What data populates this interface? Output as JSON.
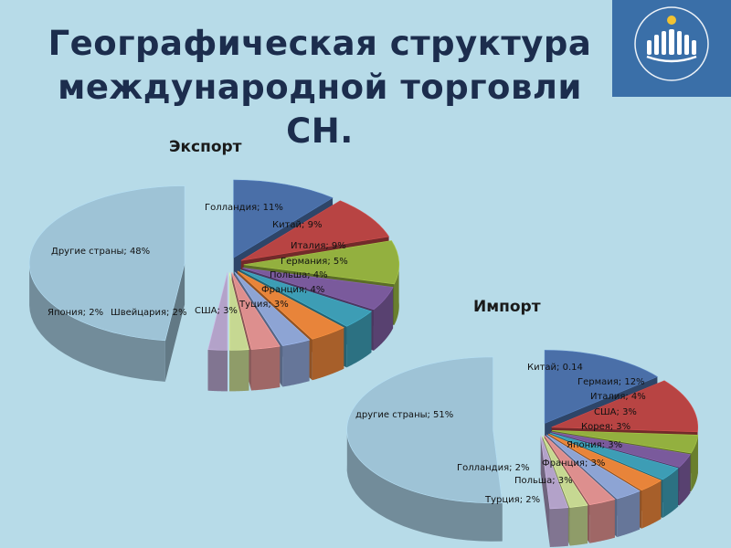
{
  "slide": {
    "title_line1": "Географическая структура",
    "title_line2": "международной торговли СН."
  },
  "logo": {
    "icon": "cis-emblem-icon",
    "background": "#3a6fa8"
  },
  "chart_data": [
    {
      "type": "pie",
      "title": "Экспорт",
      "slices": [
        {
          "label": "Голландия; 11%",
          "value": 11,
          "color": "#4a6fa8"
        },
        {
          "label": "Китай; 9%",
          "value": 9,
          "color": "#b84443"
        },
        {
          "label": "Италия; 9%",
          "value": 9,
          "color": "#93b03f"
        },
        {
          "label": "Германия; 5%",
          "value": 5,
          "color": "#7a5a9c"
        },
        {
          "label": "Польша; 4%",
          "value": 4,
          "color": "#3d9db5"
        },
        {
          "label": "Франция; 4%",
          "value": 4,
          "color": "#e8843a"
        },
        {
          "label": "Туция; 3%",
          "value": 3,
          "color": "#8da4d4"
        },
        {
          "label": "США; 3%",
          "value": 3,
          "color": "#dd8f8e"
        },
        {
          "label": "Швейцария; 2%",
          "value": 2,
          "color": "#c6d892"
        },
        {
          "label": "Япония; 2%",
          "value": 2,
          "color": "#b3a2c9"
        },
        {
          "label": "Другие страны; 48%",
          "value": 48,
          "color": "#9ec3d6"
        }
      ]
    },
    {
      "type": "pie",
      "title": "Импорт",
      "slices": [
        {
          "label": "Китай; 0.14",
          "value": 14,
          "color": "#4a6fa8"
        },
        {
          "label": "Гермаия; 12%",
          "value": 12,
          "color": "#b84443"
        },
        {
          "label": "Италия; 4%",
          "value": 4,
          "color": "#93b03f"
        },
        {
          "label": "США; 3%",
          "value": 3,
          "color": "#7a5a9c"
        },
        {
          "label": "Корея; 3%",
          "value": 3,
          "color": "#3d9db5"
        },
        {
          "label": "Япония; 3%",
          "value": 3,
          "color": "#e8843a"
        },
        {
          "label": "Франция; 3%",
          "value": 3,
          "color": "#8da4d4"
        },
        {
          "label": "Польша; 3%",
          "value": 3,
          "color": "#dd8f8e"
        },
        {
          "label": "Голландия; 2%",
          "value": 2,
          "color": "#c6d892"
        },
        {
          "label": "Турция; 2%",
          "value": 2,
          "color": "#b3a2c9"
        },
        {
          "label": "другие страны; 51%",
          "value": 51,
          "color": "#9ec3d6"
        }
      ]
    }
  ]
}
